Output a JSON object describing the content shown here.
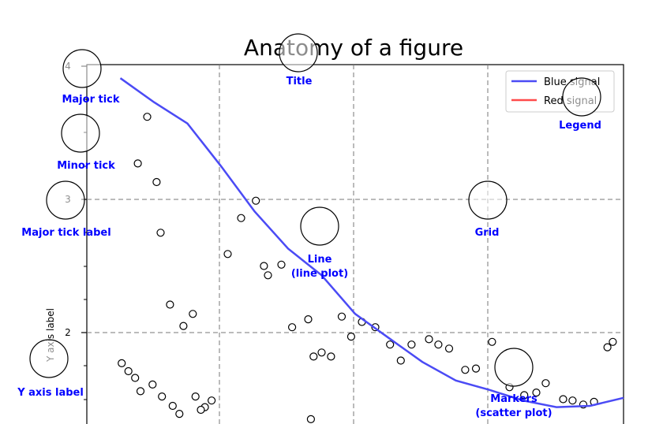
{
  "chart_data": {
    "type": "line",
    "title": "Anatomy of a figure",
    "xlabel": "",
    "ylabel": "Y axis label",
    "xlim": [
      0,
      4
    ],
    "ylim": [
      0.4,
      4.1
    ],
    "yticks": [
      2,
      3,
      4
    ],
    "ytick_labels": [
      "2",
      "3",
      "4"
    ],
    "grid": true,
    "legend_position": "top-right",
    "series": [
      {
        "name": "Blue signal",
        "color": "#4b4bf5",
        "x": [
          0.25,
          0.5,
          0.75,
          1.0,
          1.25,
          1.5,
          1.75,
          2.0,
          2.25,
          2.5,
          2.75,
          3.0,
          3.25,
          3.5,
          3.75,
          4.0
        ],
        "y": [
          3.91,
          3.73,
          3.57,
          3.25,
          2.91,
          2.63,
          2.43,
          2.14,
          1.96,
          1.78,
          1.64,
          1.57,
          1.49,
          1.44,
          1.45,
          1.51
        ]
      },
      {
        "name": "Red signal",
        "color": "#ff4a4a",
        "x": [],
        "y": []
      }
    ],
    "scatter": {
      "name": "Markers",
      "x": [
        0.45,
        0.38,
        0.52,
        0.55,
        0.62,
        0.72,
        0.79,
        1.05,
        1.15,
        1.26,
        1.32,
        1.35,
        1.45,
        1.53,
        1.65,
        1.69,
        1.75,
        1.82,
        1.9,
        1.97,
        2.05,
        2.15,
        2.26,
        2.34,
        2.42,
        2.55,
        2.62,
        2.7,
        2.82,
        2.9,
        3.02,
        3.15,
        3.26,
        3.35,
        3.42,
        3.55,
        3.62,
        3.7,
        3.78,
        3.88,
        3.92,
        0.26,
        0.31,
        0.36,
        0.4,
        0.49,
        0.56,
        0.64,
        0.69,
        0.81,
        0.88,
        1.0,
        1.09,
        1.21,
        1.29,
        1.41,
        1.48,
        1.58,
        1.67,
        1.84,
        2.1,
        2.22,
        2.46,
        2.6,
        2.78,
        2.85,
        2.99,
        3.08,
        3.12,
        3.24,
        3.29,
        3.33,
        3.38,
        3.58,
        3.67,
        3.74,
        3.79,
        3.86,
        0.85,
        0.93
      ],
      "y": [
        3.62,
        3.27,
        3.13,
        2.75,
        2.21,
        2.05,
        2.14,
        2.59,
        2.86,
        2.99,
        2.5,
        2.43,
        2.51,
        2.04,
        2.1,
        1.82,
        1.85,
        1.82,
        2.12,
        1.97,
        2.08,
        2.04,
        1.91,
        1.79,
        1.91,
        1.95,
        1.91,
        1.88,
        1.72,
        1.73,
        1.93,
        1.59,
        1.53,
        1.55,
        1.62,
        1.5,
        1.49,
        1.46,
        1.48,
        1.89,
        1.93,
        1.77,
        1.71,
        1.66,
        1.56,
        1.61,
        1.52,
        1.45,
        1.39,
        1.52,
        1.44,
        1.32,
        1.24,
        1.08,
        1.13,
        1.01,
        1.2,
        1.0,
        1.35,
        1.26,
        1.11,
        1.09,
        0.96,
        1.02,
        0.93,
        0.94,
        0.88,
        0.92,
        0.85,
        0.82,
        0.8,
        0.9,
        0.87,
        0.84,
        0.91,
        0.96,
        0.97,
        0.99,
        1.42,
        1.49
      ]
    },
    "annotations": [
      {
        "key": "title",
        "text": "Title"
      },
      {
        "key": "major_tick",
        "text": "Major tick"
      },
      {
        "key": "minor_tick",
        "text": "Minor tick"
      },
      {
        "key": "major_tick_label",
        "text": "Major tick label"
      },
      {
        "key": "grid",
        "text": "Grid"
      },
      {
        "key": "legend",
        "text": "Legend"
      },
      {
        "key": "line",
        "text": "Line"
      },
      {
        "key": "line_sub",
        "text": "(line plot)"
      },
      {
        "key": "y_axis_label",
        "text": "Y axis label"
      },
      {
        "key": "markers",
        "text": "Markers"
      },
      {
        "key": "markers_sub",
        "text": "(scatter plot)"
      }
    ]
  }
}
